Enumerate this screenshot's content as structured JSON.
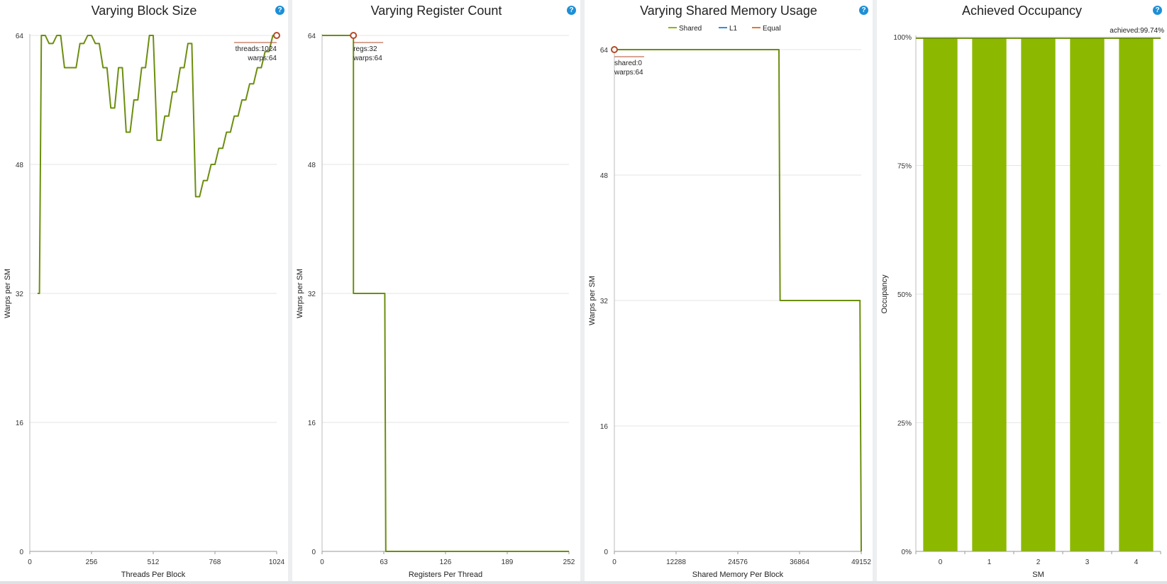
{
  "colors": {
    "line": "#6b8e0e",
    "bar": "#8cb800",
    "marker": "#b34a2a",
    "grid": "#e6e6e6",
    "help": "#1e8fd6"
  },
  "icons": {
    "help": "question-mark-icon"
  },
  "help_glyph": "?",
  "chart_data": [
    {
      "type": "line",
      "title": "Varying Block Size",
      "xlabel": "Threads Per Block",
      "ylabel": "Warps per SM",
      "xlim": [
        0,
        1024
      ],
      "ylim": [
        0,
        64
      ],
      "xticks": [
        0,
        256,
        512,
        768,
        1024
      ],
      "yticks": [
        0,
        16,
        32,
        48,
        64
      ],
      "series": [
        {
          "points": [
            [
              32,
              32
            ],
            [
              40,
              32
            ],
            [
              48,
              64
            ],
            [
              64,
              64
            ],
            [
              80,
              63
            ],
            [
              96,
              63
            ],
            [
              112,
              64
            ],
            [
              128,
              64
            ],
            [
              144,
              60
            ],
            [
              160,
              60
            ],
            [
              176,
              60
            ],
            [
              192,
              60
            ],
            [
              208,
              63
            ],
            [
              224,
              63
            ],
            [
              240,
              64
            ],
            [
              256,
              64
            ],
            [
              272,
              63
            ],
            [
              288,
              63
            ],
            [
              304,
              60
            ],
            [
              320,
              60
            ],
            [
              336,
              55
            ],
            [
              352,
              55
            ],
            [
              368,
              60
            ],
            [
              384,
              60
            ],
            [
              400,
              52
            ],
            [
              416,
              52
            ],
            [
              432,
              56
            ],
            [
              448,
              56
            ],
            [
              464,
              60
            ],
            [
              480,
              60
            ],
            [
              496,
              64
            ],
            [
              512,
              64
            ],
            [
              528,
              51
            ],
            [
              544,
              51
            ],
            [
              560,
              54
            ],
            [
              576,
              54
            ],
            [
              592,
              57
            ],
            [
              608,
              57
            ],
            [
              624,
              60
            ],
            [
              640,
              60
            ],
            [
              656,
              63
            ],
            [
              672,
              63
            ],
            [
              688,
              44
            ],
            [
              704,
              44
            ],
            [
              720,
              46
            ],
            [
              736,
              46
            ],
            [
              752,
              48
            ],
            [
              768,
              48
            ],
            [
              784,
              50
            ],
            [
              800,
              50
            ],
            [
              816,
              52
            ],
            [
              832,
              52
            ],
            [
              848,
              54
            ],
            [
              864,
              54
            ],
            [
              880,
              56
            ],
            [
              896,
              56
            ],
            [
              912,
              58
            ],
            [
              928,
              58
            ],
            [
              944,
              60
            ],
            [
              960,
              60
            ],
            [
              976,
              62
            ],
            [
              992,
              62
            ],
            [
              1008,
              64
            ],
            [
              1024,
              64
            ]
          ]
        }
      ],
      "marker": {
        "x": 1024,
        "y": 64
      },
      "annotations": [
        "threads:1024",
        "warps:64"
      ]
    },
    {
      "type": "line",
      "title": "Varying Register Count",
      "xlabel": "Registers Per Thread",
      "ylabel": "Warps per SM",
      "xlim": [
        0,
        252
      ],
      "ylim": [
        0,
        64
      ],
      "xticks": [
        0,
        63,
        126,
        189,
        252
      ],
      "yticks": [
        0,
        16,
        32,
        48,
        64
      ],
      "series": [
        {
          "points": [
            [
              0,
              64
            ],
            [
              32,
              64
            ],
            [
              32,
              32
            ],
            [
              64,
              32
            ],
            [
              65,
              0
            ],
            [
              252,
              0
            ]
          ]
        }
      ],
      "marker": {
        "x": 32,
        "y": 64
      },
      "annotations": [
        "regs:32",
        "warps:64"
      ]
    },
    {
      "type": "line",
      "title": "Varying Shared Memory Usage",
      "xlabel": "Shared Memory Per Block",
      "ylabel": "Warps per SM",
      "xlim": [
        0,
        49152
      ],
      "ylim": [
        0,
        64
      ],
      "xticks": [
        0,
        12288,
        24576,
        36864,
        49152
      ],
      "yticks": [
        0,
        16,
        32,
        48,
        64
      ],
      "legend": [
        {
          "name": "Shared",
          "color": "#8cb800"
        },
        {
          "name": "L1",
          "color": "#2f8fe0"
        },
        {
          "name": "Equal",
          "color": "#e8742c"
        }
      ],
      "series": [
        {
          "name": "Shared",
          "points": [
            [
              0,
              64
            ],
            [
              32768,
              64
            ],
            [
              33000,
              32
            ],
            [
              48896,
              32
            ],
            [
              49152,
              0
            ]
          ]
        }
      ],
      "marker": {
        "x": 0,
        "y": 64
      },
      "annotations": [
        "shared:0",
        "warps:64"
      ]
    },
    {
      "type": "bar",
      "title": "Achieved Occupancy",
      "xlabel": "SM",
      "ylabel": "Occupancy",
      "ylim": [
        0,
        100
      ],
      "yticks": [
        "0%",
        "25%",
        "50%",
        "75%",
        "100%"
      ],
      "categories": [
        "0",
        "1",
        "2",
        "3",
        "4"
      ],
      "values": [
        99.7,
        99.7,
        99.7,
        99.7,
        99.7
      ],
      "achieved": 99.74,
      "annotations": [
        "achieved:99.74%"
      ]
    }
  ]
}
